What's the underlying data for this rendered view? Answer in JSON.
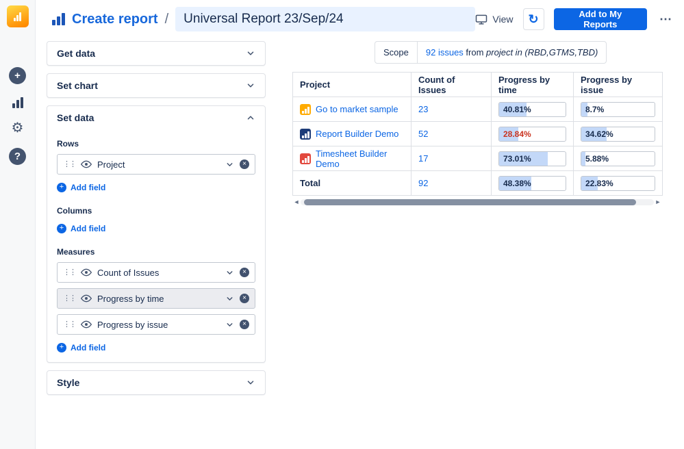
{
  "colors": {
    "accent_blue": "#0c66e4",
    "title_blue": "#1868db",
    "navy_text": "#172b4d",
    "negative_red": "#ca3521",
    "progress_fill": "#c3d8f8",
    "title_input_bg": "#e9f2ff"
  },
  "icons": {
    "add": "+",
    "help": "?",
    "settings": "⚙",
    "more": "⋯",
    "refresh": "↻",
    "drag": "⋮⋮",
    "remove": "×",
    "plus": "+",
    "scroll_left": "◄",
    "scroll_right": "►"
  },
  "header": {
    "breadcrumb": "Create report",
    "separator": "/",
    "report_name": "Universal Report 23/Sep/24",
    "view_label": "View",
    "add_to_my_reports": "Add to My Reports"
  },
  "panel": {
    "get_data": "Get data",
    "set_chart": "Set chart",
    "set_data": "Set data",
    "style": "Style",
    "rows_label": "Rows",
    "columns_label": "Columns",
    "measures_label": "Measures",
    "add_field": "Add field",
    "rows_fields": [
      "Project"
    ],
    "measures_fields": [
      "Count of Issues",
      "Progress by time",
      "Progress by issue"
    ]
  },
  "scope": {
    "label": "Scope",
    "issues_link": "92 issues",
    "from_text": "from",
    "filter_text": "project in (RBD,GTMS,TBD)"
  },
  "table": {
    "columns": [
      "Project",
      "Count of Issues",
      "Progress by time",
      "Progress by issue"
    ],
    "rows": [
      {
        "project": "Go to market sample",
        "icon_color": "#ffab00",
        "count": "23",
        "time_label": "40.81%",
        "time_pct": 40.81,
        "time_color": "#172b4d",
        "issue_label": "8.7%",
        "issue_pct": 8.7
      },
      {
        "project": "Report Builder Demo",
        "icon_color": "#1d3c78",
        "count": "52",
        "time_label": "28.84%",
        "time_pct": 28.84,
        "time_color": "#ca3521",
        "issue_label": "34.62%",
        "issue_pct": 34.62
      },
      {
        "project": "Timesheet Builder Demo",
        "icon_color": "#e2483d",
        "count": "17",
        "time_label": "73.01%",
        "time_pct": 73.01,
        "time_color": "#172b4d",
        "issue_label": "5.88%",
        "issue_pct": 5.88
      }
    ],
    "total": {
      "label": "Total",
      "count": "92",
      "time_label": "48.38%",
      "time_pct": 48.38,
      "issue_label": "22.83%",
      "issue_pct": 22.83
    }
  }
}
